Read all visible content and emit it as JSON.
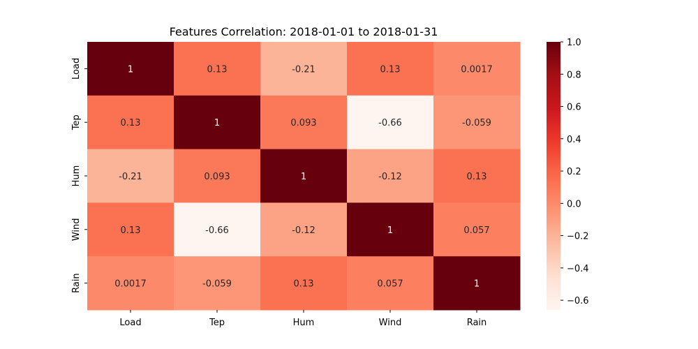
{
  "chart_data": {
    "type": "heatmap",
    "title": "Features Correlation: 2018-01-01 to 2018-01-31",
    "xlabel": "",
    "ylabel": "",
    "x_categories": [
      "Load",
      "Tep",
      "Hum",
      "Wind",
      "Rain"
    ],
    "y_categories": [
      "Load",
      "Tep",
      "Hum",
      "Wind",
      "Rain"
    ],
    "values": [
      [
        1,
        0.13,
        -0.21,
        0.13,
        0.0017
      ],
      [
        0.13,
        1,
        0.093,
        -0.66,
        -0.059
      ],
      [
        -0.21,
        0.093,
        1,
        -0.12,
        0.13
      ],
      [
        0.13,
        -0.66,
        -0.12,
        1,
        0.057
      ],
      [
        0.0017,
        -0.059,
        0.13,
        0.057,
        1
      ]
    ],
    "annotations": [
      [
        "1",
        "0.13",
        "-0.21",
        "0.13",
        "0.0017"
      ],
      [
        "0.13",
        "1",
        "0.093",
        "-0.66",
        "-0.059"
      ],
      [
        "-0.21",
        "0.093",
        "1",
        "-0.12",
        "0.13"
      ],
      [
        "0.13",
        "-0.66",
        "-0.12",
        "1",
        "0.057"
      ],
      [
        "0.0017",
        "-0.059",
        "0.13",
        "0.057",
        "1"
      ]
    ],
    "colormap": "Reds",
    "color_range": [
      -0.66,
      1
    ],
    "colorbar_ticks": [
      "1.0",
      "0.8",
      "0.6",
      "0.4",
      "0.2",
      "0.0",
      "−0.2",
      "−0.4",
      "−0.6"
    ],
    "colorbar_tick_values": [
      1.0,
      0.8,
      0.6,
      0.4,
      0.2,
      0.0,
      -0.2,
      -0.4,
      -0.6
    ],
    "grid": false,
    "legend": "colorbar-right"
  }
}
